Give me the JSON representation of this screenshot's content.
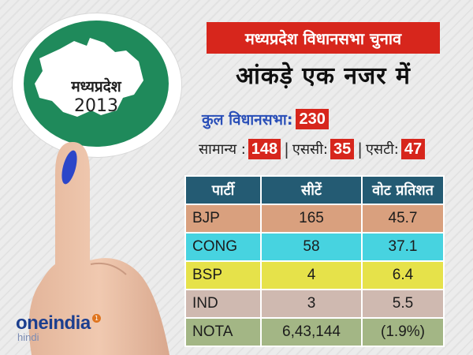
{
  "logo": {
    "state_name": "मध्यप्रदेश",
    "year": "2013"
  },
  "header": {
    "title": "मध्यप्रदेश विधानसभा चुनाव",
    "subtitle": "आंकड़े एक नजर में"
  },
  "totals": {
    "total_label": "कुल विधानसभा:",
    "total_value": "230",
    "general_label": "सामान्य :",
    "general_value": "148",
    "sc_label": "एससी:",
    "sc_value": "35",
    "st_label": "एसटी:",
    "st_value": "47",
    "separator": "|"
  },
  "table": {
    "headers": [
      "पार्टी",
      "सीटें",
      "वोट प्रतिशत"
    ],
    "rows": [
      {
        "party": "BJP",
        "seats": "165",
        "vote": "45.7",
        "color": "#d9a07e"
      },
      {
        "party": "CONG",
        "seats": "58",
        "vote": "37.1",
        "color": "#47d3e0"
      },
      {
        "party": "BSP",
        "seats": "4",
        "vote": "6.4",
        "color": "#e6e24a"
      },
      {
        "party": "IND",
        "seats": "3",
        "vote": "5.5",
        "color": "#cfb9b0"
      },
      {
        "party": "NOTA",
        "seats": "6,43,144",
        "vote": "(1.9%)",
        "color": "#a3b685"
      }
    ]
  },
  "brand": {
    "name_part1": "one",
    "name_part2": "india",
    "badge": "1",
    "sub": "hindi"
  },
  "colors": {
    "title_bg": "#d7261c",
    "table_header": "#245b73",
    "logo_green": "#1f8a5b"
  }
}
